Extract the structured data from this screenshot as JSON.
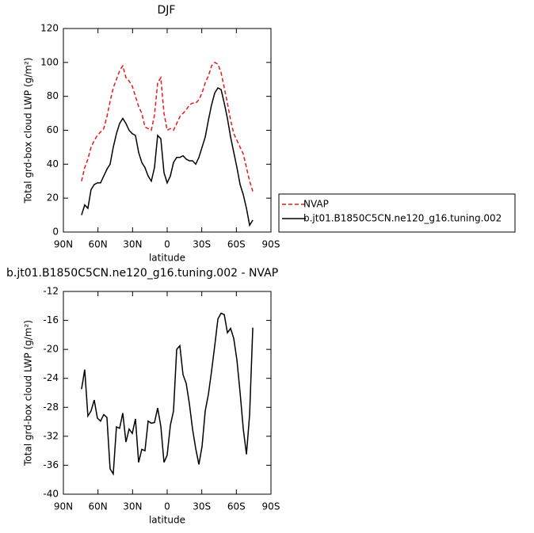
{
  "chart_data": [
    {
      "type": "line",
      "title": "DJF",
      "xlabel": "latitude",
      "ylabel": "Total grd-box cloud LWP (g/m²)",
      "x": [
        74.25,
        71.5,
        68.75,
        66,
        63.25,
        60.5,
        57.75,
        55,
        52.25,
        49.5,
        46.75,
        44,
        41.25,
        38.5,
        35.75,
        33,
        30.25,
        27.5,
        24.75,
        22,
        19.25,
        16.5,
        13.75,
        11,
        8.25,
        5.5,
        2.75,
        0,
        -2.75,
        -5.5,
        -8.25,
        -11,
        -13.75,
        -16.5,
        -19.25,
        -22,
        -24.75,
        -27.5,
        -30.25,
        -33,
        -35.75,
        -38.5,
        -41.25,
        -44,
        -46.75,
        -49.5,
        -52.25,
        -55,
        -57.75,
        -60.5,
        -63.25,
        -66,
        -68.75,
        -71.5,
        -74.25
      ],
      "xlim": [
        90,
        -90
      ],
      "xticks": [
        {
          "value": 90,
          "label": "90N"
        },
        {
          "value": 60,
          "label": "60N"
        },
        {
          "value": 30,
          "label": "30N"
        },
        0,
        {
          "value": -30,
          "label": "30S"
        },
        {
          "value": -60,
          "label": "60S"
        },
        {
          "value": -90,
          "label": "90S"
        }
      ],
      "ylim": [
        0,
        120
      ],
      "yticks": [
        0,
        20,
        40,
        60,
        80,
        100,
        120
      ],
      "legend": "right",
      "series": [
        {
          "name": "NVAP",
          "color": "#e41a1c",
          "linestyle": "dashed",
          "values": [
            30,
            38,
            43,
            50,
            54,
            57,
            59,
            61,
            68,
            77,
            85,
            90,
            95,
            98,
            91,
            89,
            86,
            80,
            74,
            70,
            62,
            61,
            60,
            69,
            88,
            91,
            70,
            60,
            61,
            60,
            64,
            68,
            70,
            72,
            75,
            76,
            76,
            78,
            82,
            88,
            92,
            98,
            100,
            99,
            94,
            85,
            76,
            66,
            58,
            54,
            50,
            46,
            38,
            30,
            24
          ]
        },
        {
          "name": "b.jt01.B1850C5CN.ne120_g16.tuning.002",
          "color": "#000000",
          "linestyle": "solid",
          "values": [
            10,
            16,
            14,
            25,
            28,
            29,
            29,
            33,
            37,
            40,
            50,
            58,
            64,
            67,
            64,
            60,
            58,
            57,
            47,
            41,
            38,
            33,
            30,
            38,
            57,
            55,
            35,
            29,
            33,
            41,
            44,
            44,
            45,
            43,
            42,
            42,
            40,
            44,
            50,
            56,
            66,
            75,
            82,
            85,
            84,
            76,
            67,
            56,
            47,
            38,
            28,
            22,
            14,
            4,
            7
          ]
        }
      ]
    },
    {
      "type": "line",
      "title": "b.jt01.B1850C5CN.ne120_g16.tuning.002 - NVAP",
      "xlabel": "latitude",
      "ylabel": "Total grd-box cloud LWP (g/m²)",
      "x": [
        74.25,
        71.5,
        68.75,
        66,
        63.25,
        60.5,
        57.75,
        55,
        52.25,
        49.5,
        46.75,
        44,
        41.25,
        38.5,
        35.75,
        33,
        30.25,
        27.5,
        24.75,
        22,
        19.25,
        16.5,
        13.75,
        11,
        8.25,
        5.5,
        2.75,
        0,
        -2.75,
        -5.5,
        -8.25,
        -11,
        -13.75,
        -16.5,
        -19.25,
        -22,
        -24.75,
        -27.5,
        -30.25,
        -33,
        -35.75,
        -38.5,
        -41.25,
        -44,
        -46.75,
        -49.5,
        -52.25,
        -55,
        -57.75,
        -60.5,
        -63.25,
        -66,
        -68.75,
        -71.5,
        -74.25
      ],
      "xlim": [
        90,
        -90
      ],
      "xticks": [
        {
          "value": 90,
          "label": "90N"
        },
        {
          "value": 60,
          "label": "60N"
        },
        {
          "value": 30,
          "label": "30N"
        },
        0,
        {
          "value": -30,
          "label": "30S"
        },
        {
          "value": -60,
          "label": "60S"
        },
        {
          "value": -90,
          "label": "90S"
        }
      ],
      "ylim": [
        -40,
        -12
      ],
      "yticks": [
        -40,
        -36,
        -32,
        -28,
        -24,
        -20,
        -16,
        -12
      ],
      "series": [
        {
          "color": "#000000",
          "linestyle": "solid",
          "values": [
            -25.5,
            -22.8,
            -29.2,
            -28.5,
            -27,
            -29.5,
            -29.9,
            -29,
            -29.4,
            -36.5,
            -37.2,
            -30.7,
            -30.9,
            -28.8,
            -32.8,
            -31,
            -31.6,
            -29.6,
            -35.6,
            -33.8,
            -34,
            -29.9,
            -30.2,
            -30.1,
            -28.1,
            -30.6,
            -35.6,
            -34.6,
            -30.5,
            -28.5,
            -20,
            -19.5,
            -23.5,
            -24.7,
            -27.5,
            -31,
            -33.7,
            -35.9,
            -33.4,
            -28.5,
            -26.2,
            -23,
            -19.5,
            -15.8,
            -15,
            -15.2,
            -17.7,
            -17.1,
            -18.5,
            -21.5,
            -26,
            -31,
            -34.5,
            -29,
            -17
          ]
        }
      ]
    }
  ]
}
